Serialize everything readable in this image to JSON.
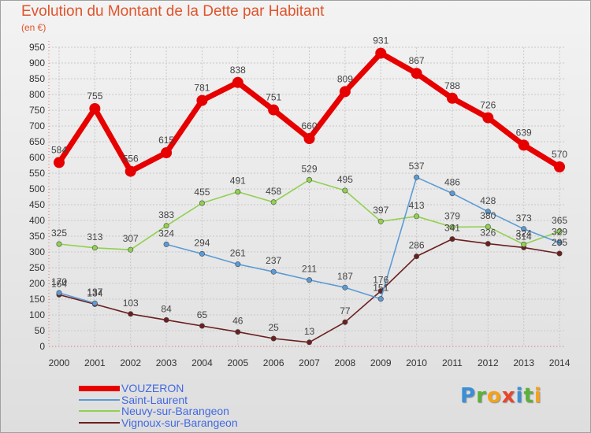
{
  "title": "Evolution du Montant de la Dette par Habitant",
  "subtitle": "(en €)",
  "logo": {
    "text": "Proxiti",
    "letters": [
      {
        "ch": "P",
        "color": "#3a8fd6"
      },
      {
        "ch": "r",
        "color": "#5bb13a"
      },
      {
        "ch": "o",
        "color": "#f4a21c"
      },
      {
        "ch": "x",
        "color": "#e8452c"
      },
      {
        "ch": "i",
        "color": "#3a8fd6"
      },
      {
        "ch": "t",
        "color": "#5bb13a"
      },
      {
        "ch": "i",
        "color": "#f4a21c"
      }
    ]
  },
  "chart_data": {
    "type": "line",
    "title": "Evolution du Montant de la Dette par Habitant",
    "ylabel": "(en €)",
    "xlabel": "",
    "ylim": [
      0,
      950
    ],
    "yticks": [
      0,
      50,
      100,
      150,
      200,
      250,
      300,
      350,
      400,
      450,
      500,
      550,
      600,
      650,
      700,
      750,
      800,
      850,
      900,
      950
    ],
    "x": [
      "2000",
      "2001",
      "2002",
      "2003",
      "2004",
      "2005",
      "2006",
      "2007",
      "2008",
      "2009",
      "2010",
      "2011",
      "2012",
      "2013",
      "2014"
    ],
    "grid": true,
    "legend_position": "bottom-left",
    "series": [
      {
        "name": "VOUZERON",
        "color": "#e60000",
        "values": [
          584,
          755,
          556,
          615,
          781,
          838,
          751,
          660,
          809,
          931,
          867,
          788,
          726,
          639,
          570
        ]
      },
      {
        "name": "Saint-Laurent",
        "color": "#5b9bd5",
        "values": [
          170,
          137,
          null,
          324,
          294,
          261,
          237,
          211,
          187,
          151,
          537,
          486,
          428,
          373,
          329
        ]
      },
      {
        "name": "Neuvy-sur-Barangeon",
        "color": "#92d050",
        "values": [
          325,
          313,
          307,
          383,
          455,
          491,
          458,
          529,
          495,
          397,
          413,
          379,
          380,
          324,
          365
        ]
      },
      {
        "name": "Vignoux-sur-Barangeon",
        "color": "#6b1f1f",
        "values": [
          164,
          134,
          103,
          84,
          65,
          46,
          25,
          13,
          77,
          176,
          286,
          341,
          326,
          314,
          295
        ]
      }
    ]
  }
}
